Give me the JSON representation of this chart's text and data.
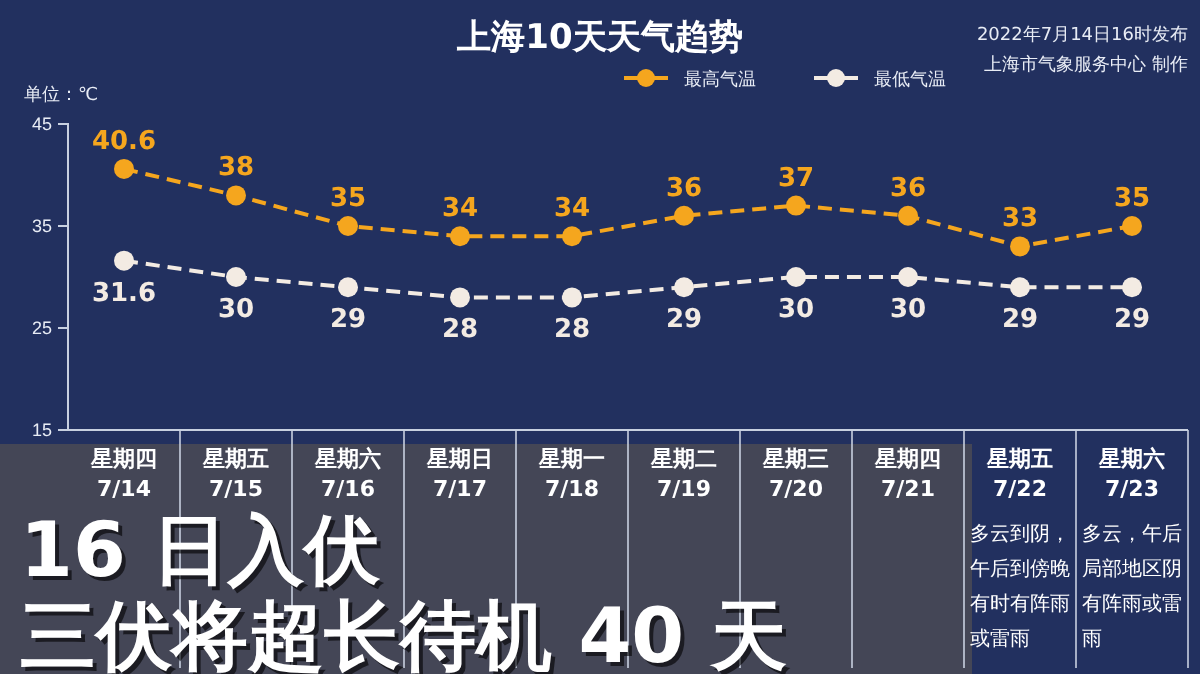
{
  "chart_data": {
    "type": "line",
    "title": "上海10天天气趋势",
    "ylabel": "单位：℃",
    "categories": [
      "星期四 7/14",
      "星期五 7/15",
      "星期六 7/16",
      "星期日 7/17",
      "星期一 7/18",
      "星期二 7/19",
      "星期三 7/20",
      "星期四 7/21",
      "星期五 7/22",
      "星期六 7/23"
    ],
    "series": [
      {
        "name": "最高气温",
        "color": "#f5a61e",
        "values": [
          40.6,
          38,
          35,
          34,
          34,
          36,
          37,
          36,
          33,
          35
        ]
      },
      {
        "name": "最低气温",
        "color": "#f3ebe3",
        "values": [
          31.6,
          30,
          29,
          28,
          28,
          29,
          30,
          30,
          29,
          29
        ]
      }
    ],
    "ylim": [
      15,
      45
    ],
    "yticks": [
      15,
      25,
      35,
      45
    ],
    "grid": false,
    "legend": "top right",
    "marker": "circle",
    "line_style": "dashed",
    "data_labels": true,
    "annotations": [
      "2022年7月14日16时发布",
      "上海市气象服务中心 制作",
      "16 日入伏",
      "三伏将超长待机 40 天",
      "多云到阴，午后到傍晚有时有阵雨或雷雨",
      "多云，午后局部地区阴有阵雨或雷雨"
    ]
  }
}
